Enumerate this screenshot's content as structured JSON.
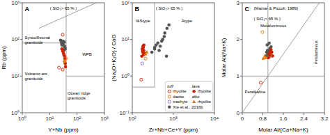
{
  "chart_data": [
    {
      "type": "scatter",
      "title": "A",
      "xlabel": "Y+Nb (ppm)",
      "ylabel": "Rb (ppm)",
      "log": true,
      "grid": false,
      "xlim": [
        1,
        1000
      ],
      "ylim": [
        1,
        1000
      ],
      "xticks": [
        {
          "value": 1,
          "label": "10⁰"
        },
        {
          "value": 10,
          "label": "10¹"
        },
        {
          "value": 100,
          "label": "10²"
        },
        {
          "value": 1000,
          "label": "10³"
        }
      ],
      "yticks": [
        {
          "value": 1,
          "label": "10⁰"
        },
        {
          "value": 10,
          "label": "10¹"
        },
        {
          "value": 100,
          "label": "10²"
        },
        {
          "value": 1000,
          "label": "10³"
        }
      ],
      "annotations": [
        {
          "text": "( SiO₂> 65 % )"
        },
        {
          "text": "Syncollisional\ngranitoids"
        },
        {
          "text": "WPB"
        },
        {
          "text": "Volcanic arc\ngranitoids"
        },
        {
          "text": "Ocean ridge\ngranitoids"
        }
      ],
      "series": [
        {
          "type": "line",
          "color": "#888888",
          "x": [
            1,
            40
          ],
          "values": [
            80,
            80
          ]
        },
        {
          "type": "line",
          "color": "#888888",
          "x": [
            40,
            1000
          ],
          "values": [
            10,
            10
          ]
        },
        {
          "type": "line",
          "color": "#888888",
          "x": [
            40,
            40
          ],
          "values": [
            1,
            1000
          ]
        },
        {
          "type": "line",
          "color": "#888888",
          "x": [
            4,
            500
          ],
          "values": [
            200,
            1000
          ]
        },
        {
          "color": "#555555",
          "marker": "circle",
          "x": [
            25,
            27,
            30,
            32,
            34,
            35,
            36,
            37,
            28,
            30,
            33
          ],
          "values": [
            95,
            80,
            75,
            70,
            85,
            65,
            60,
            55,
            70,
            90,
            50
          ]
        },
        {
          "color": "#cc2200",
          "marker": "circle",
          "x": [
            28,
            30,
            32,
            33,
            35,
            36,
            37,
            38
          ],
          "values": [
            55,
            48,
            42,
            38,
            35,
            30,
            22,
            18
          ]
        },
        {
          "color": "#e07000",
          "marker": "circle",
          "x": [
            35
          ],
          "values": [
            25
          ]
        },
        {
          "color": "#cc2200",
          "marker": "open-circle",
          "x": [
            30
          ],
          "values": [
            135
          ]
        },
        {
          "color": "#cc2200",
          "marker": "open-circle",
          "x": [
            22,
            30
          ],
          "values": [
            17,
            15
          ]
        },
        {
          "color": "#e07000",
          "marker": "open-circle",
          "x": [
            40
          ],
          "values": [
            30
          ]
        }
      ]
    },
    {
      "type": "scatter",
      "title": "B",
      "xlabel": "Zr+Nb+Ce+Y (ppm)",
      "ylabel": "(Na₂O+K₂O) / CaO",
      "log": true,
      "grid": false,
      "legend": "lower right",
      "xlim": [
        100,
        10000
      ],
      "ylim": [
        0.1,
        100
      ],
      "xticks": [
        {
          "value": 100,
          "label": "10²"
        },
        {
          "value": 1000,
          "label": "10³"
        },
        {
          "value": 10000,
          "label": "10⁴"
        }
      ],
      "yticks": [
        {
          "value": 0.1,
          "label": "10⁻¹"
        },
        {
          "value": 1,
          "label": "10⁰"
        },
        {
          "value": 10,
          "label": "10¹"
        },
        {
          "value": 100,
          "label": "10²"
        }
      ],
      "annotations": [
        {
          "text": "( SiO₂> 65 % )"
        },
        {
          "text": "I&Stype"
        },
        {
          "text": "Atype"
        },
        {
          "text": "tuff"
        },
        {
          "text": "lava"
        },
        {
          "text": "dike"
        }
      ],
      "series": [
        {
          "type": "line",
          "color": "#888888",
          "x": [
            350,
            350
          ],
          "values": [
            0.5,
            100
          ]
        },
        {
          "type": "line",
          "color": "#888888",
          "x": [
            100,
            350
          ],
          "values": [
            0.5,
            0.5
          ]
        },
        {
          "color": "#555555",
          "marker": "circle",
          "x": [
            350,
            420,
            480,
            550,
            620,
            700,
            780,
            380,
            450,
            520,
            600,
            680
          ],
          "values": [
            5.5,
            8.0,
            6.5,
            10.0,
            15.0,
            20.0,
            25.0,
            7.0,
            5.0,
            9.0,
            12.0,
            3.5
          ]
        },
        {
          "name": "Xie et al., 2016b",
          "color": "#555555",
          "marker": "circle",
          "x": [
            300,
            350
          ],
          "values": [
            4.5,
            6.0
          ]
        },
        {
          "name": "rhyolite",
          "color": "#cc2200",
          "marker": "circle",
          "x": [
            170,
            180,
            190,
            195,
            185,
            175,
            200,
            188,
            178,
            192,
            182
          ],
          "values": [
            3.5,
            4.5,
            5.0,
            4.0,
            6.0,
            5.5,
            4.2,
            3.8,
            4.8,
            7.0,
            6.5
          ]
        },
        {
          "name": "rhyolite",
          "color": "#e07000",
          "marker": "triangle",
          "x": [
            210,
            225
          ],
          "values": [
            4.0,
            4.5
          ]
        },
        {
          "name": "rhyolite",
          "color": "#cc2200",
          "marker": "open-circle",
          "x": [
            165
          ],
          "values": [
            0.8
          ]
        },
        {
          "name": "dacite",
          "color": "#e07000",
          "marker": "open-circle",
          "x": [
            210
          ],
          "values": [
            3.0
          ]
        },
        {
          "name": "trachyte",
          "color": "#8866bb",
          "marker": "open-circle",
          "x": [
            175
          ],
          "values": [
            2.2
          ]
        }
      ]
    },
    {
      "type": "scatter",
      "title": "C",
      "xlabel": "Molar Al/(Ca+Na+K)",
      "ylabel": "Molar Al/(Na+K)",
      "grid": false,
      "xlim": [
        0,
        3.2
      ],
      "ylim": [
        0,
        3.0
      ],
      "xticks": [
        0,
        0.8,
        1.6,
        2.4,
        3.2
      ],
      "yticks": [
        0,
        1,
        2,
        3
      ],
      "annotations": [
        {
          "text": "(Maniar & Piccoli, 1989)"
        },
        {
          "text": "( SiO₂> 65 % )"
        },
        {
          "text": "Metaluminous"
        },
        {
          "text": "Peralkaline"
        },
        {
          "text": "Peraluminous"
        }
      ],
      "series": [
        {
          "type": "hline",
          "color": "#888888",
          "values": [
            1.0
          ]
        },
        {
          "type": "vline",
          "color": "#888888",
          "values": [
            1.0
          ]
        },
        {
          "type": "line",
          "color": "#888888",
          "x": [
            0,
            3.0
          ],
          "values": [
            0,
            3.0
          ]
        },
        {
          "color": "#555555",
          "marker": "circle",
          "x": [
            0.92,
            0.95,
            0.98,
            1.02,
            1.05,
            1.08,
            1.1,
            1.12,
            1.05,
            0.97,
            1.07,
            1.02,
            0.99
          ],
          "values": [
            1.55,
            1.65,
            1.7,
            1.6,
            1.55,
            1.72,
            1.65,
            1.8,
            1.9,
            1.85,
            1.75,
            1.68,
            1.62
          ]
        },
        {
          "color": "#cc2200",
          "marker": "circle",
          "x": [
            1.02,
            1.06,
            1.08,
            1.1,
            1.12,
            1.15,
            1.18
          ],
          "values": [
            1.5,
            1.58,
            1.62,
            1.68,
            1.72,
            1.65,
            1.55
          ]
        },
        {
          "color": "#e07000",
          "marker": "triangle",
          "x": [
            0.82,
            0.88,
            0.92
          ],
          "values": [
            1.48,
            1.55,
            1.5
          ]
        },
        {
          "color": "#cc2200",
          "marker": "open-circle",
          "x": [
            0.72,
            1.05,
            1.1
          ],
          "values": [
            0.82,
            1.62,
            1.55
          ]
        },
        {
          "color": "#e07000",
          "marker": "open-circle",
          "x": [
            0.78
          ],
          "values": [
            2.2
          ]
        }
      ]
    }
  ]
}
